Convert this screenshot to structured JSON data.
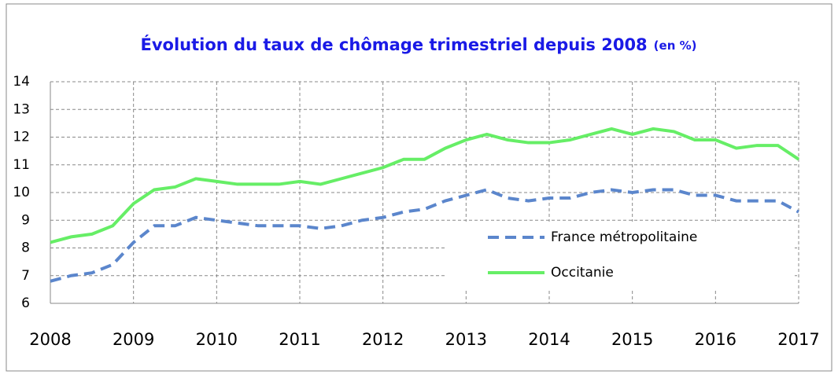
{
  "chart_data": {
    "type": "line",
    "title": "Évolution du taux de chômage trimestriel depuis 2008",
    "subtitle": "(en %)",
    "x": [
      2008,
      2008.25,
      2008.5,
      2008.75,
      2009,
      2009.25,
      2009.5,
      2009.75,
      2010,
      2010.25,
      2010.5,
      2010.75,
      2011,
      2011.25,
      2011.5,
      2011.75,
      2012,
      2012.25,
      2012.5,
      2012.75,
      2013,
      2013.25,
      2013.5,
      2013.75,
      2014,
      2014.25,
      2014.5,
      2014.75,
      2015,
      2015.25,
      2015.5,
      2015.75,
      2016,
      2016.25,
      2016.5,
      2016.75,
      2017
    ],
    "series": [
      {
        "name": "France métropolitaine",
        "color": "#5b86cc",
        "dashed": true,
        "values": [
          6.8,
          7.0,
          7.1,
          7.4,
          8.2,
          8.8,
          8.8,
          9.1,
          9.0,
          8.9,
          8.8,
          8.8,
          8.8,
          8.7,
          8.8,
          9.0,
          9.1,
          9.3,
          9.4,
          9.7,
          9.9,
          10.1,
          9.8,
          9.7,
          9.8,
          9.8,
          10.0,
          10.1,
          10.0,
          10.1,
          10.1,
          9.9,
          9.9,
          9.7,
          9.7,
          9.7,
          9.3
        ]
      },
      {
        "name": "Occitanie",
        "color": "#66ee66",
        "dashed": false,
        "values": [
          8.2,
          8.4,
          8.5,
          8.8,
          9.6,
          10.1,
          10.2,
          10.5,
          10.4,
          10.3,
          10.3,
          10.3,
          10.4,
          10.3,
          10.5,
          10.7,
          10.9,
          11.2,
          11.2,
          11.6,
          11.9,
          12.1,
          11.9,
          11.8,
          11.8,
          11.9,
          12.1,
          12.3,
          12.1,
          12.3,
          12.2,
          11.9,
          11.9,
          11.6,
          11.7,
          11.7,
          11.2
        ]
      }
    ],
    "xlim": [
      2008,
      2017
    ],
    "xticks": [
      2008,
      2009,
      2010,
      2011,
      2012,
      2013,
      2014,
      2015,
      2016,
      2017
    ],
    "ylim": [
      6,
      14
    ],
    "yticks": [
      6,
      7,
      8,
      9,
      10,
      11,
      12,
      13,
      14
    ],
    "grid": true,
    "legend": "lower-right"
  }
}
